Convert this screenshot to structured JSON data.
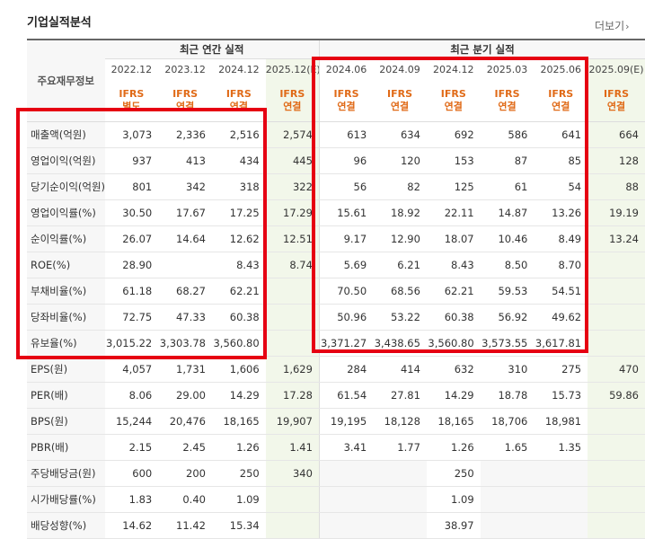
{
  "header": {
    "title": "기업실적분석",
    "more_label": "더보기",
    "more_icon": "chevron-right-icon"
  },
  "table": {
    "corner_label": "주요재무정보",
    "annual_group_label": "최근 연간 실적",
    "quarter_group_label": "최근 분기 실적",
    "columns": [
      {
        "period": "2022.12",
        "basis_line1": "IFRS",
        "basis_line2": "별도"
      },
      {
        "period": "2023.12",
        "basis_line1": "IFRS",
        "basis_line2": "연결"
      },
      {
        "period": "2024.12",
        "basis_line1": "IFRS",
        "basis_line2": "연결"
      },
      {
        "period": "2025.12(E)",
        "basis_line1": "IFRS",
        "basis_line2": "연결"
      },
      {
        "period": "2024.06",
        "basis_line1": "IFRS",
        "basis_line2": "연결"
      },
      {
        "period": "2024.09",
        "basis_line1": "IFRS",
        "basis_line2": "연결"
      },
      {
        "period": "2024.12",
        "basis_line1": "IFRS",
        "basis_line2": "연결"
      },
      {
        "period": "2025.03",
        "basis_line1": "IFRS",
        "basis_line2": "연결"
      },
      {
        "period": "2025.06",
        "basis_line1": "IFRS",
        "basis_line2": "연결"
      },
      {
        "period": "2025.09(E)",
        "basis_line1": "IFRS",
        "basis_line2": "연결"
      }
    ],
    "rows": [
      {
        "label": "매출액(억원)",
        "values": [
          "3,073",
          "2,336",
          "2,516",
          "2,574",
          "613",
          "634",
          "692",
          "586",
          "641",
          "664"
        ]
      },
      {
        "label": "영업이익(억원)",
        "values": [
          "937",
          "413",
          "434",
          "445",
          "96",
          "120",
          "153",
          "87",
          "85",
          "128"
        ]
      },
      {
        "label": "당기순이익(억원)",
        "values": [
          "801",
          "342",
          "318",
          "322",
          "56",
          "82",
          "125",
          "61",
          "54",
          "88"
        ]
      },
      {
        "label": "영업이익률(%)",
        "values": [
          "30.50",
          "17.67",
          "17.25",
          "17.29",
          "15.61",
          "18.92",
          "22.11",
          "14.87",
          "13.26",
          "19.19"
        ]
      },
      {
        "label": "순이익률(%)",
        "values": [
          "26.07",
          "14.64",
          "12.62",
          "12.51",
          "9.17",
          "12.90",
          "18.07",
          "10.46",
          "8.49",
          "13.24"
        ]
      },
      {
        "label": "ROE(%)",
        "values": [
          "28.90",
          "",
          "8.43",
          "8.74",
          "5.69",
          "6.21",
          "8.43",
          "8.50",
          "8.70",
          ""
        ]
      },
      {
        "label": "부채비율(%)",
        "values": [
          "61.18",
          "68.27",
          "62.21",
          "",
          "70.50",
          "68.56",
          "62.21",
          "59.53",
          "54.51",
          ""
        ]
      },
      {
        "label": "당좌비율(%)",
        "values": [
          "72.75",
          "47.33",
          "60.38",
          "",
          "50.96",
          "53.22",
          "60.38",
          "56.92",
          "49.62",
          ""
        ]
      },
      {
        "label": "유보율(%)",
        "values": [
          "3,015.22",
          "3,303.78",
          "3,560.80",
          "",
          "3,371.27",
          "3,438.65",
          "3,560.80",
          "3,573.55",
          "3,617.81",
          ""
        ]
      },
      {
        "label": "EPS(원)",
        "values": [
          "4,057",
          "1,731",
          "1,606",
          "1,629",
          "284",
          "414",
          "632",
          "310",
          "275",
          "470"
        ]
      },
      {
        "label": "PER(배)",
        "values": [
          "8.06",
          "29.00",
          "14.29",
          "17.28",
          "61.54",
          "27.81",
          "14.29",
          "18.78",
          "15.73",
          "59.86"
        ]
      },
      {
        "label": "BPS(원)",
        "values": [
          "15,244",
          "20,476",
          "18,165",
          "19,907",
          "19,195",
          "18,128",
          "18,165",
          "18,706",
          "18,981",
          ""
        ]
      },
      {
        "label": "PBR(배)",
        "values": [
          "2.15",
          "2.45",
          "1.26",
          "1.41",
          "3.41",
          "1.77",
          "1.26",
          "1.65",
          "1.35",
          ""
        ]
      },
      {
        "label": "주당배당금(원)",
        "values": [
          "600",
          "200",
          "250",
          "340",
          "",
          "",
          "250",
          "",
          "",
          ""
        ]
      },
      {
        "label": "시가배당률(%)",
        "values": [
          "1.83",
          "0.40",
          "1.09",
          "",
          "",
          "",
          "1.09",
          "",
          "",
          ""
        ]
      },
      {
        "label": "배당성향(%)",
        "values": [
          "14.62",
          "11.42",
          "15.34",
          "",
          "",
          "",
          "38.97",
          "",
          "",
          ""
        ]
      }
    ]
  },
  "highlight_color": "#e60012",
  "ifrs_color": "#e06a17",
  "estimate_bg_color": "#f2f7ea"
}
